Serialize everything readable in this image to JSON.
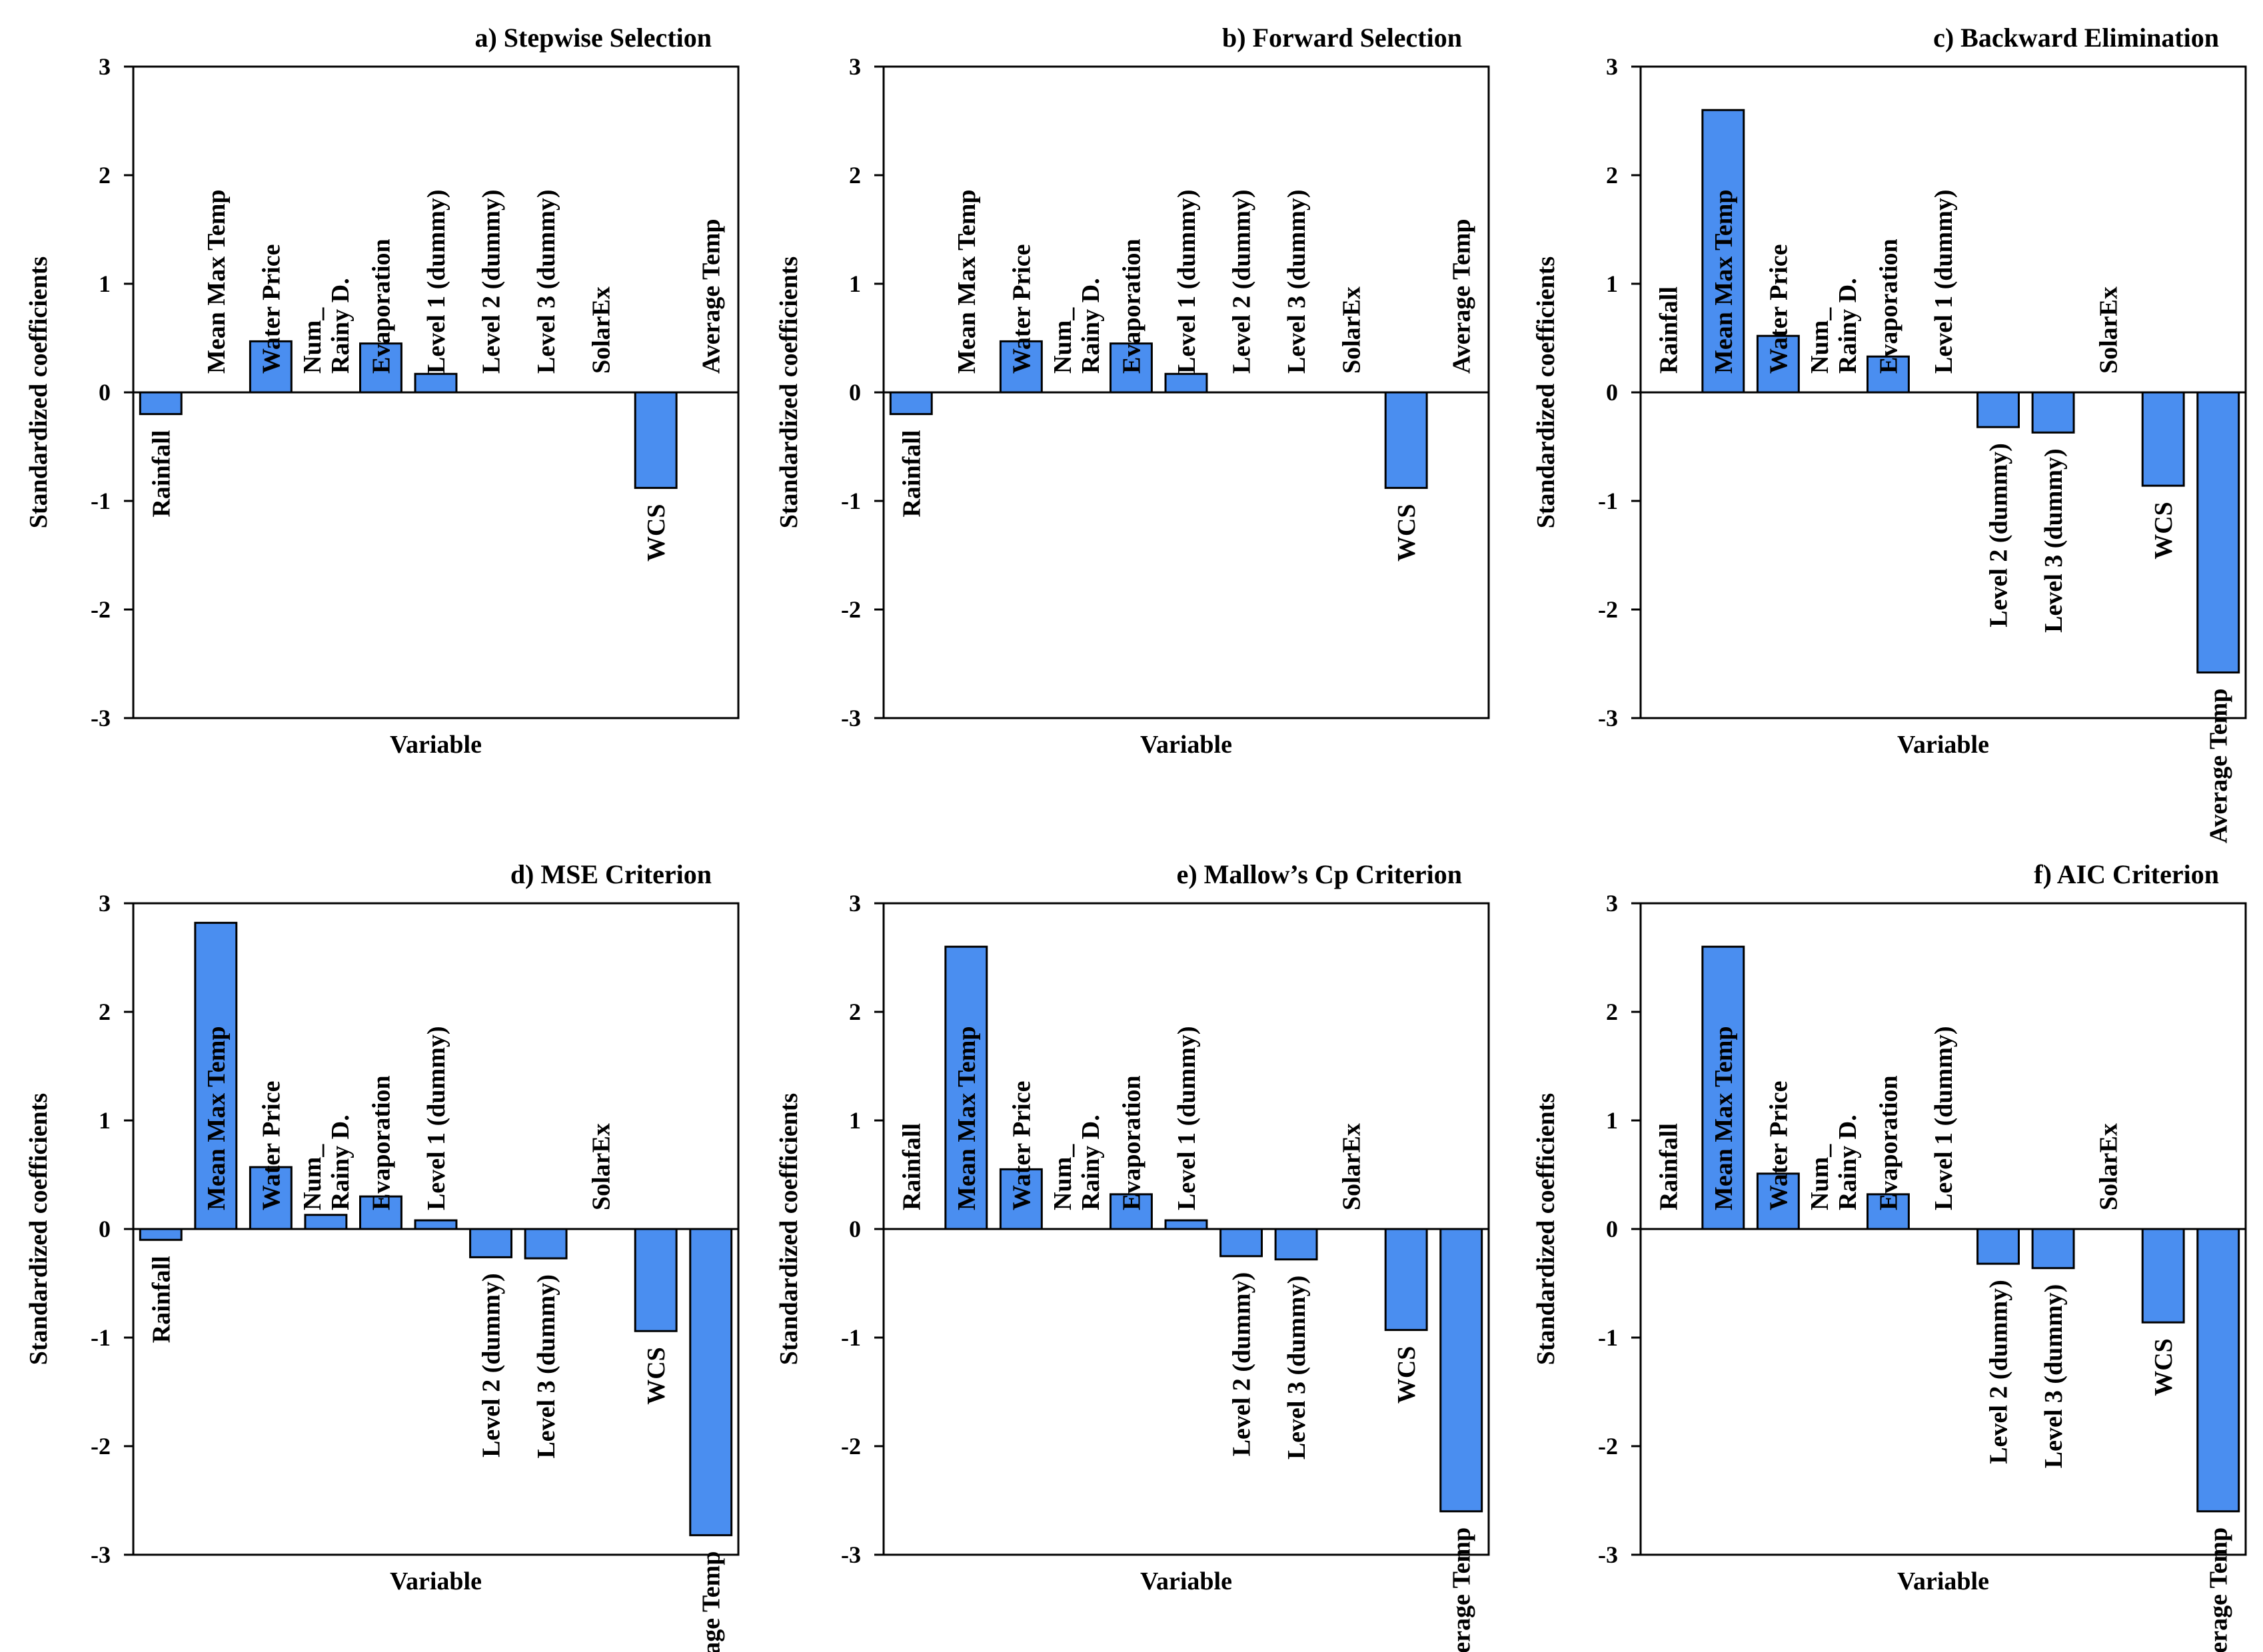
{
  "colors": {
    "bar_fill": "#4a8ef0",
    "bar_stroke": "#000000",
    "axis": "#000000"
  },
  "chart_data": [
    {
      "type": "bar",
      "title": "a) Stepwise  Selection",
      "xlabel": "Variable",
      "ylabel": "Standardized coefficients",
      "ylim": [
        -3,
        3
      ],
      "yticks": [
        "3",
        "2",
        "1",
        "0",
        "-1",
        "-2",
        "-3"
      ],
      "categories": [
        "Rainfall",
        "Mean Max Temp",
        "Water Price",
        "Num_\nRainy D.",
        "Evaporation",
        "Level 1 (dummy)",
        "Level 2 (dummy)",
        "Level 3 (dummy)",
        "SolarEx",
        "WCS",
        "Average Temp"
      ],
      "values": [
        -0.2,
        0,
        0.47,
        0,
        0.45,
        0.17,
        0,
        0,
        0,
        -0.88,
        0
      ]
    },
    {
      "type": "bar",
      "title": "b) Forward Selection",
      "xlabel": "Variable",
      "ylabel": "Standardized coefficients",
      "ylim": [
        -3,
        3
      ],
      "yticks": [
        "3",
        "2",
        "1",
        "0",
        "-1",
        "-2",
        "-3"
      ],
      "categories": [
        "Rainfall",
        "Mean Max Temp",
        "Water Price",
        "Num_\nRainy D.",
        "Evaporation",
        "Level 1 (dummy)",
        "Level 2 (dummy)",
        "Level 3 (dummy)",
        "SolarEx",
        "WCS",
        "Average Temp"
      ],
      "values": [
        -0.2,
        0,
        0.47,
        0,
        0.45,
        0.17,
        0,
        0,
        0,
        -0.88,
        0
      ]
    },
    {
      "type": "bar",
      "title": "c) Backward Elimination",
      "xlabel": "Variable",
      "ylabel": "Standardized coefficients",
      "ylim": [
        -3,
        3
      ],
      "yticks": [
        "3",
        "2",
        "1",
        "0",
        "-1",
        "-2",
        "-3"
      ],
      "categories": [
        "Rainfall",
        "Mean Max Temp",
        "Water Price",
        "Num_\nRainy D.",
        "Evaporation",
        "Level 1 (dummy)",
        "Level 2 (dummy)",
        "Level 3 (dummy)",
        "SolarEx",
        "WCS",
        "Average Temp"
      ],
      "values": [
        0,
        2.6,
        0.52,
        0,
        0.33,
        0,
        -0.32,
        -0.37,
        0,
        -0.86,
        -2.58
      ]
    },
    {
      "type": "bar",
      "title": "d) MSE Criterion",
      "xlabel": "Variable",
      "ylabel": "Standardized coefficients",
      "ylim": [
        -3,
        3
      ],
      "yticks": [
        "3",
        "2",
        "1",
        "0",
        "-1",
        "-2",
        "-3"
      ],
      "categories": [
        "Rainfall",
        "Mean Max Temp",
        "Water Price",
        "Num_\nRainy D.",
        "Evaporation",
        "Level 1 (dummy)",
        "Level 2 (dummy)",
        "Level 3 (dummy)",
        "SolarEx",
        "WCS",
        "Average Temp"
      ],
      "values": [
        -0.1,
        2.82,
        0.57,
        0.13,
        0.3,
        0.08,
        -0.26,
        -0.27,
        0,
        -0.94,
        -2.82
      ]
    },
    {
      "type": "bar",
      "title": "e) Mallow’s  Cp Criterion",
      "xlabel": "Variable",
      "ylabel": "Standardized coefficients",
      "ylim": [
        -3,
        3
      ],
      "yticks": [
        "3",
        "2",
        "1",
        "0",
        "-1",
        "-2",
        "-3"
      ],
      "categories": [
        "Rainfall",
        "Mean Max Temp",
        "Water Price",
        "Num_\nRainy D.",
        "Evaporation",
        "Level 1 (dummy)",
        "Level 2 (dummy)",
        "Level 3 (dummy)",
        "SolarEx",
        "WCS",
        "Average Temp"
      ],
      "values": [
        0,
        2.6,
        0.55,
        0,
        0.32,
        0.08,
        -0.25,
        -0.28,
        0,
        -0.93,
        -2.6
      ]
    },
    {
      "type": "bar",
      "title": "f) AIC Criterion",
      "xlabel": "Variable",
      "ylabel": "Standardized coefficients",
      "ylim": [
        -3,
        3
      ],
      "yticks": [
        "3",
        "2",
        "1",
        "0",
        "-1",
        "-2",
        "-3"
      ],
      "categories": [
        "Rainfall",
        "Mean Max Temp",
        "Water Price",
        "Num_\nRainy D.",
        "Evaporation",
        "Level 1 (dummy)",
        "Level 2 (dummy)",
        "Level 3 (dummy)",
        "SolarEx",
        "WCS",
        "Average Temp"
      ],
      "values": [
        0,
        2.6,
        0.51,
        0,
        0.32,
        0,
        -0.32,
        -0.36,
        0,
        -0.86,
        -2.6
      ]
    }
  ]
}
